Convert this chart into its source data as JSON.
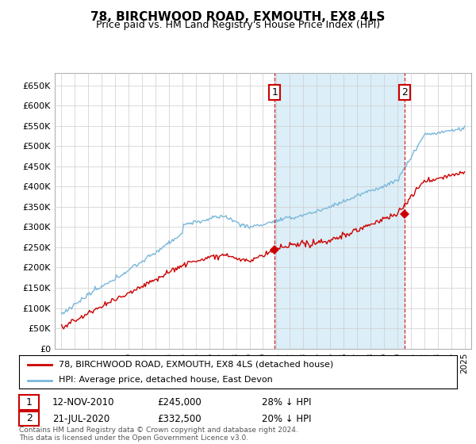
{
  "title": "78, BIRCHWOOD ROAD, EXMOUTH, EX8 4LS",
  "subtitle": "Price paid vs. HM Land Registry's House Price Index (HPI)",
  "hpi_label": "HPI: Average price, detached house, East Devon",
  "property_label": "78, BIRCHWOOD ROAD, EXMOUTH, EX8 4LS (detached house)",
  "transaction1_date": "12-NOV-2010",
  "transaction1_price": "£245,000",
  "transaction1_pct": "28% ↓ HPI",
  "transaction1_year": 2010.87,
  "transaction1_value": 245000,
  "transaction2_date": "21-JUL-2020",
  "transaction2_price": "£332,500",
  "transaction2_pct": "20% ↓ HPI",
  "transaction2_year": 2020.55,
  "transaction2_value": 332500,
  "hpi_color": "#7ab8d9",
  "hpi_shade_color": "#dceef7",
  "property_color": "#cc0000",
  "dashed_line_color": "#cc0000",
  "ylim_min": 0,
  "ylim_max": 680000,
  "yticks": [
    0,
    50000,
    100000,
    150000,
    200000,
    250000,
    300000,
    350000,
    400000,
    450000,
    500000,
    550000,
    600000,
    650000
  ],
  "footer": "Contains HM Land Registry data © Crown copyright and database right 2024.\nThis data is licensed under the Open Government Licence v3.0.",
  "background_color": "#ffffff",
  "grid_color": "#cccccc"
}
